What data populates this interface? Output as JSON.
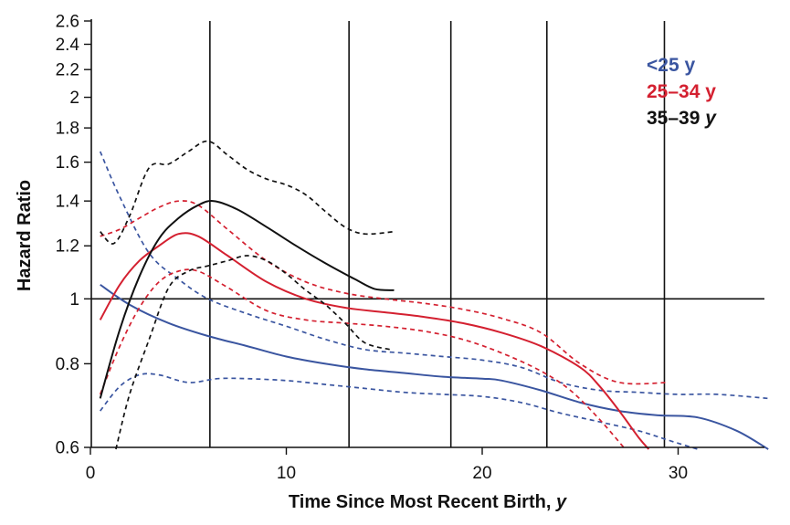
{
  "chart_data": {
    "type": "line",
    "title": "",
    "xlabel": "Time Since Most Recent Birth, ",
    "xlabel_var": "y",
    "ylabel": "Hazard Ratio",
    "xlim": [
      0,
      35
    ],
    "ylim": [
      0.6,
      2.6
    ],
    "y_scale": "log",
    "x_ticks": [
      0,
      10,
      20,
      30
    ],
    "x_tick_labels": [
      "0",
      "10",
      "20",
      "30"
    ],
    "y_ticks": [
      0.6,
      0.8,
      1,
      1.2,
      1.4,
      1.6,
      1.8,
      2,
      2.2,
      2.4,
      2.6
    ],
    "y_tick_labels": [
      "0.6",
      "0.8",
      "1",
      "1.2",
      "1.4",
      "1.6",
      "1.8",
      "2",
      "2.2",
      "2.4",
      "2.6"
    ],
    "reference_line_y": 1,
    "vertical_lines_x": [
      6.1,
      13.2,
      18.4,
      23.3,
      29.3
    ],
    "legend_position": "top-right",
    "series": [
      {
        "name": "<25 y",
        "color": "#3a55a0",
        "style": "solid",
        "x": [
          0.5,
          2,
          4,
          6,
          8,
          10,
          12,
          14,
          16,
          18,
          20,
          21,
          23,
          25,
          27,
          29,
          31,
          33,
          34.6
        ],
        "y": [
          1.05,
          0.98,
          0.92,
          0.88,
          0.85,
          0.82,
          0.8,
          0.785,
          0.775,
          0.765,
          0.76,
          0.755,
          0.73,
          0.7,
          0.68,
          0.67,
          0.665,
          0.635,
          0.595
        ]
      },
      {
        "name": "<25 y upper 95% CI",
        "color": "#3a55a0",
        "style": "dashed",
        "x": [
          0.5,
          1.5,
          3,
          4.5,
          6,
          8,
          10,
          12,
          14,
          16,
          18,
          20,
          22,
          24,
          26,
          28,
          30,
          32,
          34.6
        ],
        "y": [
          1.66,
          1.42,
          1.17,
          1.07,
          1.0,
          0.95,
          0.91,
          0.87,
          0.84,
          0.83,
          0.82,
          0.81,
          0.79,
          0.75,
          0.73,
          0.725,
          0.72,
          0.72,
          0.71
        ]
      },
      {
        "name": "<25 y lower 95% CI",
        "color": "#3a55a0",
        "style": "dashed",
        "x": [
          0.5,
          1.5,
          2.5,
          3.5,
          5,
          6.5,
          8,
          10,
          12,
          14,
          16,
          18,
          20,
          22,
          24,
          26,
          28,
          29.5,
          31
        ],
        "y": [
          0.68,
          0.74,
          0.77,
          0.77,
          0.75,
          0.76,
          0.76,
          0.755,
          0.745,
          0.735,
          0.725,
          0.72,
          0.715,
          0.7,
          0.675,
          0.655,
          0.635,
          0.615,
          0.595
        ]
      },
      {
        "name": "25–34 y",
        "color": "#d42030",
        "style": "solid",
        "x": [
          0.5,
          1.5,
          2.5,
          3.5,
          4.5,
          5.5,
          7,
          9,
          11,
          13,
          15,
          17,
          19,
          21,
          23,
          25,
          26,
          27,
          28,
          28.5
        ],
        "y": [
          0.93,
          1.05,
          1.14,
          1.2,
          1.25,
          1.24,
          1.16,
          1.06,
          1.0,
          0.97,
          0.955,
          0.94,
          0.92,
          0.89,
          0.85,
          0.79,
          0.74,
          0.68,
          0.62,
          0.595
        ]
      },
      {
        "name": "25–34 y upper 95% CI",
        "color": "#d42030",
        "style": "dashed",
        "x": [
          0.5,
          1.5,
          2.5,
          3.5,
          4.5,
          5.5,
          7,
          9,
          11,
          13,
          15,
          17,
          19,
          21,
          23,
          25,
          27,
          29.5
        ],
        "y": [
          1.24,
          1.27,
          1.32,
          1.37,
          1.4,
          1.38,
          1.27,
          1.14,
          1.06,
          1.02,
          1.0,
          0.985,
          0.965,
          0.935,
          0.89,
          0.8,
          0.75,
          0.75
        ]
      },
      {
        "name": "25–34 y lower 95% CI",
        "color": "#d42030",
        "style": "dashed",
        "x": [
          0.5,
          1.5,
          2.5,
          3.5,
          4.5,
          5.5,
          7,
          9,
          11,
          13,
          15,
          17,
          19,
          21,
          23,
          24.5,
          26,
          27.3
        ],
        "y": [
          0.72,
          0.85,
          0.97,
          1.06,
          1.1,
          1.1,
          1.04,
          0.96,
          0.93,
          0.92,
          0.91,
          0.895,
          0.87,
          0.83,
          0.78,
          0.73,
          0.66,
          0.595
        ]
      },
      {
        "name": "35–39 y",
        "color": "#111111",
        "style": "solid",
        "x": [
          0.5,
          1.5,
          2.5,
          3.5,
          4.5,
          5.5,
          6.3,
          7.5,
          9,
          10.5,
          12,
          13.5,
          14.5,
          15.5
        ],
        "y": [
          0.71,
          0.9,
          1.08,
          1.23,
          1.32,
          1.38,
          1.4,
          1.36,
          1.28,
          1.2,
          1.13,
          1.07,
          1.035,
          1.03
        ]
      },
      {
        "name": "35–39 y upper 95% CI",
        "color": "#111111",
        "style": "dashed",
        "x": [
          0.5,
          1.2,
          2,
          3,
          4,
          5,
          6,
          7,
          8,
          9,
          10,
          11,
          12,
          13,
          14,
          15.5
        ],
        "y": [
          1.26,
          1.21,
          1.33,
          1.57,
          1.59,
          1.66,
          1.72,
          1.64,
          1.56,
          1.51,
          1.48,
          1.43,
          1.35,
          1.28,
          1.25,
          1.26
        ]
      },
      {
        "name": "35–39 y lower 95% CI",
        "color": "#111111",
        "style": "dashed",
        "x": [
          1.3,
          2,
          3,
          4,
          5,
          6,
          7,
          8,
          9,
          10,
          11,
          12,
          13,
          14,
          15.3
        ],
        "y": [
          0.595,
          0.72,
          0.87,
          1.04,
          1.1,
          1.12,
          1.14,
          1.16,
          1.14,
          1.09,
          1.03,
          0.98,
          0.92,
          0.86,
          0.84
        ]
      }
    ],
    "legend": [
      {
        "label": "<25 y",
        "color": "#3a55a0",
        "italic_y": false
      },
      {
        "label": "25–34 y",
        "color": "#d42030",
        "italic_y": false
      },
      {
        "label": "35–39 ",
        "italic_part": "y",
        "color": "#111111",
        "italic_y": true
      }
    ]
  }
}
